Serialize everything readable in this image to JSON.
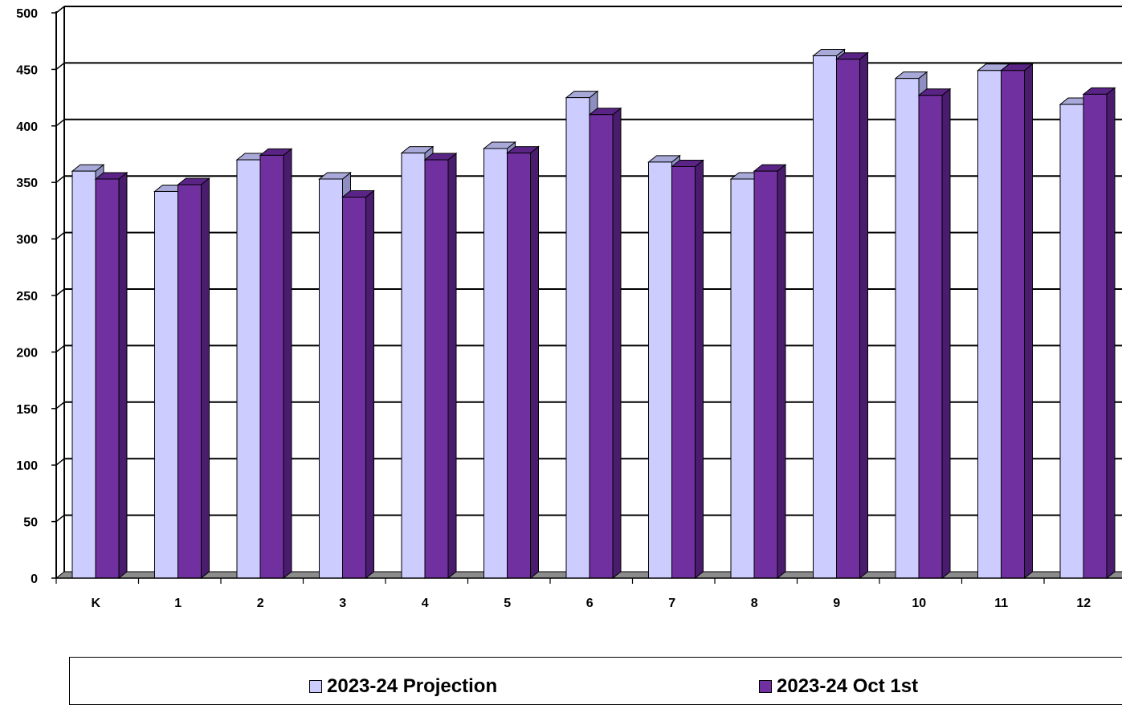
{
  "chart_data": {
    "type": "bar",
    "style": "3d-clustered-column",
    "categories": [
      "K",
      "1",
      "2",
      "3",
      "4",
      "5",
      "6",
      "7",
      "8",
      "9",
      "10",
      "11",
      "12"
    ],
    "series": [
      {
        "name": "2023-24 Projection",
        "color": "#ccccff",
        "values": [
          360,
          342,
          370,
          353,
          376,
          380,
          425,
          368,
          353,
          462,
          442,
          449,
          419
        ]
      },
      {
        "name": "2023-24 Oct 1st",
        "color": "#7030a0",
        "values": [
          353,
          348,
          374,
          337,
          370,
          376,
          410,
          364,
          360,
          459,
          427,
          449,
          428
        ]
      }
    ],
    "y_ticks": [
      "0",
      "50",
      "100",
      "150",
      "200",
      "250",
      "300",
      "350",
      "400",
      "450",
      "500"
    ],
    "ylim": [
      0,
      500
    ],
    "grid": true,
    "legend_position": "bottom"
  }
}
